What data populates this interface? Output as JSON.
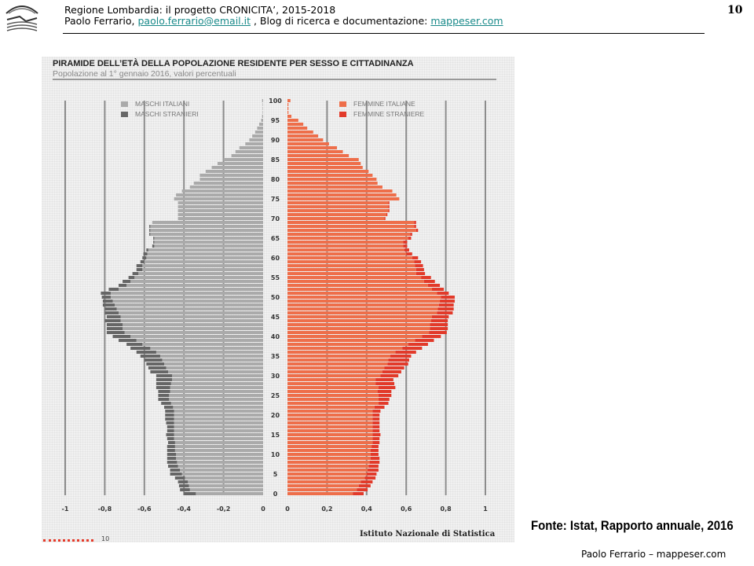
{
  "header": {
    "line1": "Regione Lombardia:  il progetto CRONICITA’,  2015-2018",
    "line2_prefix": "Paolo Ferrario, ",
    "email": "paolo.ferrario@email.it",
    "line2_mid": "  , Blog di ricerca e documentazione: ",
    "blog": "mappeser.com",
    "page_number": "10"
  },
  "source_note": "Fonte: Istat, Rapporto annuale, 2016",
  "footer": "Paolo Ferrario  –  mappeser.com",
  "panel_footer": {
    "page": "10",
    "institute": "Istituto Nazionale di Statistica"
  },
  "colors": {
    "maschi_italiani": "#aaaaaa",
    "maschi_stranieri": "#666666",
    "femmine_italiane": "#ee6e4a",
    "femmine_straniere": "#e23a2a",
    "link": "#1a8a8a"
  },
  "chart_data": {
    "type": "bar",
    "orientation": "horizontal-population-pyramid",
    "title": "PIRAMIDE DELL’ETÀ DELLA POPOLAZIONE RESIDENTE PER SESSO E CITTADINANZA",
    "subtitle": "Popolazione al 1° gennaio 2016, valori percentuali",
    "age_range": [
      0,
      100
    ],
    "age_tick_labels": [
      "0",
      "5",
      "10",
      "15",
      "20",
      "25",
      "30",
      "35",
      "40",
      "45",
      "50",
      "55",
      "60",
      "65",
      "70",
      "75",
      "80",
      "85",
      "90",
      "95",
      "100"
    ],
    "x_tick_labels_left": [
      "-1",
      "-0,8",
      "-0,6",
      "-0,4",
      "-0,2",
      "0"
    ],
    "x_tick_labels_right": [
      "0",
      "0,2",
      "0,4",
      "0,6",
      "0,8",
      "1"
    ],
    "xlim": [
      -1,
      1
    ],
    "legend": {
      "left": [
        "MASCHI ITALIANI",
        "MASCHI STRANIERI"
      ],
      "right": [
        "FEMMINE ITALIANE",
        "FEMMINE STRANIERE"
      ]
    },
    "series": [
      {
        "name": "MASCHI ITALIANI",
        "side": "left",
        "values": [
          0.34,
          0.37,
          0.375,
          0.38,
          0.395,
          0.41,
          0.42,
          0.43,
          0.435,
          0.44,
          0.44,
          0.445,
          0.445,
          0.445,
          0.45,
          0.45,
          0.45,
          0.45,
          0.45,
          0.45,
          0.45,
          0.45,
          0.455,
          0.465,
          0.475,
          0.475,
          0.47,
          0.47,
          0.465,
          0.46,
          0.46,
          0.48,
          0.49,
          0.5,
          0.51,
          0.52,
          0.54,
          0.57,
          0.61,
          0.64,
          0.67,
          0.7,
          0.71,
          0.71,
          0.72,
          0.72,
          0.73,
          0.74,
          0.75,
          0.76,
          0.77,
          0.77,
          0.73,
          0.69,
          0.67,
          0.65,
          0.63,
          0.61,
          0.61,
          0.6,
          0.59,
          0.585,
          0.58,
          0.55,
          0.55,
          0.55,
          0.57,
          0.57,
          0.57,
          0.56,
          0.43,
          0.43,
          0.43,
          0.43,
          0.43,
          0.45,
          0.44,
          0.41,
          0.37,
          0.35,
          0.32,
          0.32,
          0.29,
          0.26,
          0.23,
          0.2,
          0.16,
          0.14,
          0.12,
          0.09,
          0.07,
          0.055,
          0.04,
          0.03,
          0.02,
          0.01,
          0.005,
          0.002,
          0.002,
          0.002,
          0.005
        ]
      },
      {
        "name": "MASCHI STRANIERI",
        "side": "left",
        "values": [
          0.06,
          0.05,
          0.05,
          0.05,
          0.05,
          0.06,
          0.05,
          0.05,
          0.05,
          0.045,
          0.045,
          0.04,
          0.04,
          0.035,
          0.035,
          0.04,
          0.035,
          0.035,
          0.04,
          0.045,
          0.045,
          0.045,
          0.045,
          0.05,
          0.055,
          0.055,
          0.06,
          0.07,
          0.075,
          0.08,
          0.08,
          0.09,
          0.09,
          0.09,
          0.09,
          0.1,
          0.1,
          0.1,
          0.08,
          0.09,
          0.09,
          0.09,
          0.08,
          0.08,
          0.08,
          0.07,
          0.07,
          0.06,
          0.06,
          0.05,
          0.045,
          0.05,
          0.05,
          0.04,
          0.04,
          0.03,
          0.03,
          0.03,
          0.03,
          0.02,
          0.02,
          0.02,
          0.01,
          0.01,
          0.005,
          0.005,
          0.005,
          0.005,
          0.005,
          0,
          0,
          0,
          0,
          0,
          0,
          0,
          0,
          0,
          0,
          0,
          0,
          0,
          0,
          0,
          0,
          0,
          0,
          0,
          0,
          0,
          0,
          0,
          0,
          0,
          0,
          0,
          0,
          0,
          0,
          0,
          0
        ]
      },
      {
        "name": "FEMMINE ITALIANE",
        "side": "right",
        "values": [
          0.33,
          0.35,
          0.36,
          0.37,
          0.39,
          0.4,
          0.405,
          0.41,
          0.415,
          0.42,
          0.42,
          0.42,
          0.425,
          0.43,
          0.43,
          0.43,
          0.43,
          0.43,
          0.43,
          0.43,
          0.43,
          0.43,
          0.44,
          0.46,
          0.46,
          0.46,
          0.455,
          0.46,
          0.445,
          0.445,
          0.47,
          0.48,
          0.49,
          0.505,
          0.51,
          0.52,
          0.545,
          0.58,
          0.61,
          0.645,
          0.68,
          0.715,
          0.72,
          0.72,
          0.725,
          0.73,
          0.755,
          0.76,
          0.765,
          0.77,
          0.775,
          0.755,
          0.73,
          0.71,
          0.69,
          0.675,
          0.65,
          0.65,
          0.645,
          0.64,
          0.63,
          0.6,
          0.59,
          0.585,
          0.585,
          0.61,
          0.62,
          0.65,
          0.64,
          0.64,
          0.49,
          0.5,
          0.51,
          0.51,
          0.51,
          0.565,
          0.55,
          0.53,
          0.48,
          0.455,
          0.45,
          0.43,
          0.41,
          0.38,
          0.37,
          0.36,
          0.31,
          0.28,
          0.25,
          0.21,
          0.18,
          0.155,
          0.13,
          0.1,
          0.08,
          0.055,
          0.02,
          0.005,
          0.005,
          0.005,
          0.015
        ]
      },
      {
        "name": "FEMMINE STRANIERE",
        "side": "right",
        "values": [
          0.055,
          0.055,
          0.06,
          0.06,
          0.055,
          0.05,
          0.055,
          0.05,
          0.05,
          0.045,
          0.04,
          0.04,
          0.035,
          0.035,
          0.035,
          0.04,
          0.035,
          0.035,
          0.035,
          0.035,
          0.035,
          0.04,
          0.05,
          0.05,
          0.055,
          0.065,
          0.07,
          0.085,
          0.095,
          0.09,
          0.09,
          0.095,
          0.1,
          0.105,
          0.105,
          0.105,
          0.105,
          0.1,
          0.1,
          0.095,
          0.095,
          0.09,
          0.09,
          0.09,
          0.085,
          0.085,
          0.08,
          0.08,
          0.075,
          0.075,
          0.07,
          0.06,
          0.06,
          0.06,
          0.055,
          0.05,
          0.045,
          0.04,
          0.04,
          0.035,
          0.03,
          0.03,
          0.025,
          0.02,
          0.02,
          0.015,
          0.01,
          0.01,
          0.01,
          0.01,
          0.005,
          0.005,
          0.005,
          0.005,
          0.005,
          0,
          0,
          0,
          0,
          0,
          0,
          0,
          0,
          0,
          0,
          0,
          0,
          0,
          0,
          0,
          0,
          0,
          0,
          0,
          0,
          0,
          0,
          0,
          0,
          0,
          0
        ]
      }
    ]
  }
}
